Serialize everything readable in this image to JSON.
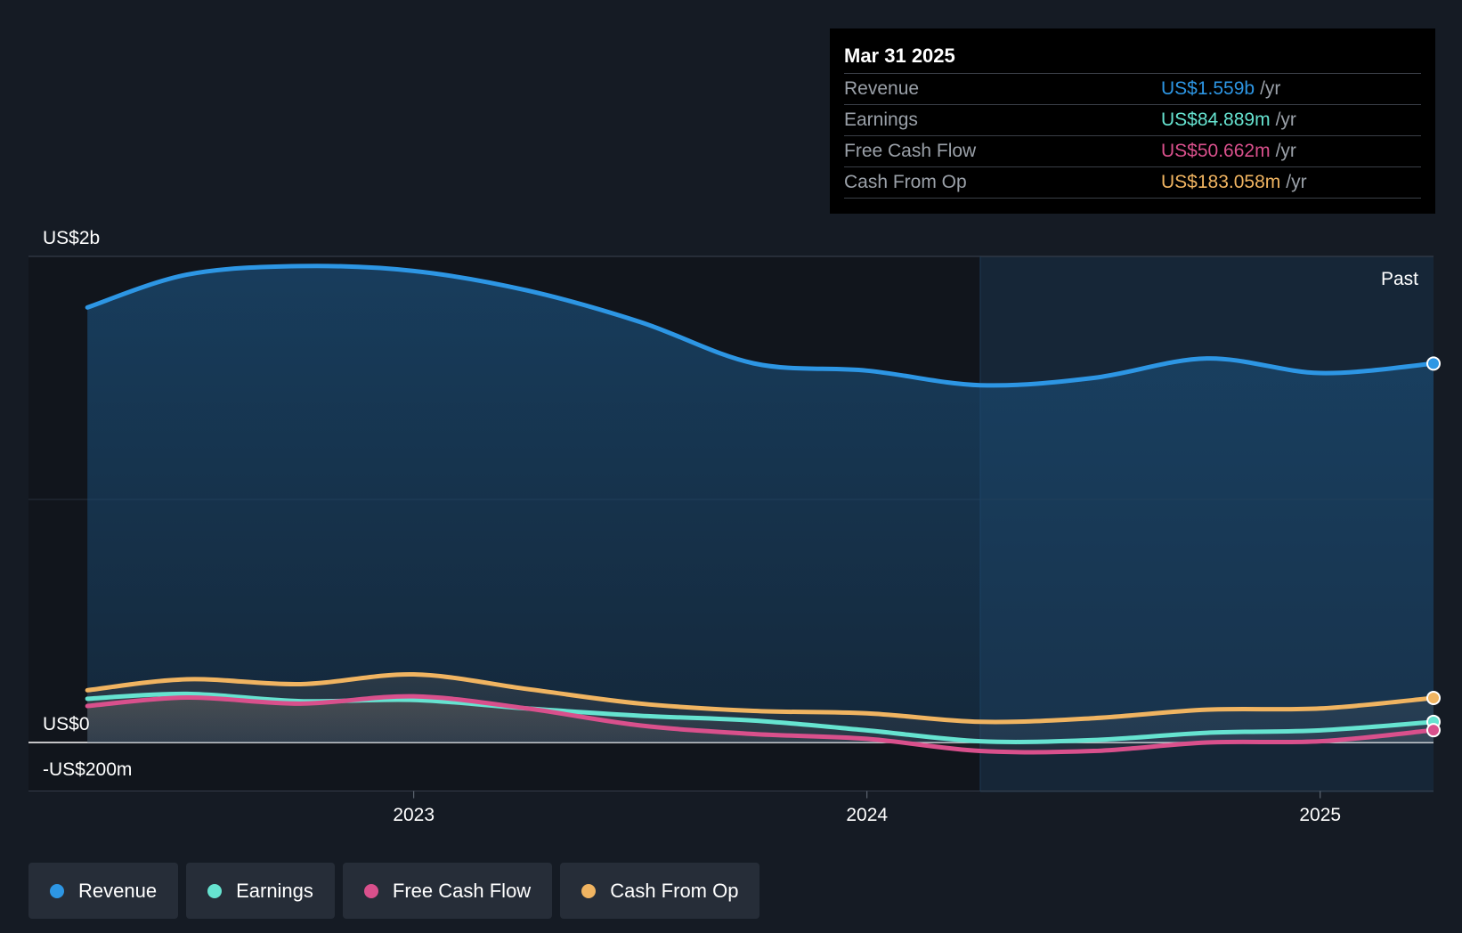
{
  "tooltip": {
    "date": "Mar 31 2025",
    "rows": [
      {
        "label": "Revenue",
        "value": "US$1.559b",
        "unit": "/yr",
        "color": "#2d96e4"
      },
      {
        "label": "Earnings",
        "value": "US$84.889m",
        "unit": "/yr",
        "color": "#66e3d0"
      },
      {
        "label": "Free Cash Flow",
        "value": "US$50.662m",
        "unit": "/yr",
        "color": "#d9508c"
      },
      {
        "label": "Cash From Op",
        "value": "US$183.058m",
        "unit": "/yr",
        "color": "#f0b461"
      }
    ]
  },
  "legend": [
    {
      "label": "Revenue",
      "color": "#2d96e4"
    },
    {
      "label": "Earnings",
      "color": "#66e3d0"
    },
    {
      "label": "Free Cash Flow",
      "color": "#d9508c"
    },
    {
      "label": "Cash From Op",
      "color": "#f0b461"
    }
  ],
  "chart_data": {
    "type": "area",
    "past_label": "Past",
    "y_tick_labels": [
      {
        "value": 2000,
        "label": "US$2b"
      },
      {
        "value": 0,
        "label": "US$0"
      },
      {
        "value": -200,
        "label": "-US$200m"
      }
    ],
    "x_tick_labels": [
      {
        "value": 2023.0,
        "label": "2023"
      },
      {
        "value": 2024.0,
        "label": "2024"
      },
      {
        "value": 2025.0,
        "label": "2025"
      }
    ],
    "xlim": [
      2022.15,
      2025.25
    ],
    "ylim": [
      -200,
      2000
    ],
    "past_start": 2024.25,
    "series": [
      {
        "name": "Revenue",
        "color": "#2d96e4",
        "x": [
          2022.28,
          2022.5,
          2022.75,
          2023.0,
          2023.25,
          2023.5,
          2023.75,
          2024.0,
          2024.25,
          2024.5,
          2024.75,
          2025.0,
          2025.25
        ],
        "values": [
          1790,
          1925,
          1960,
          1940,
          1860,
          1730,
          1560,
          1530,
          1470,
          1500,
          1580,
          1520,
          1559
        ]
      },
      {
        "name": "Earnings",
        "color": "#66e3d0",
        "x": [
          2022.28,
          2022.5,
          2022.75,
          2023.0,
          2023.25,
          2023.5,
          2023.75,
          2024.0,
          2024.25,
          2024.5,
          2024.75,
          2025.0,
          2025.25
        ],
        "values": [
          180,
          200,
          170,
          175,
          140,
          110,
          90,
          50,
          5,
          10,
          40,
          50,
          84.889
        ]
      },
      {
        "name": "Free Cash Flow",
        "color": "#d9508c",
        "x": [
          2022.28,
          2022.5,
          2022.75,
          2023.0,
          2023.25,
          2023.5,
          2023.75,
          2024.0,
          2024.25,
          2024.5,
          2024.75,
          2025.0,
          2025.25
        ],
        "values": [
          150,
          185,
          160,
          190,
          140,
          70,
          35,
          15,
          -35,
          -35,
          0,
          5,
          50.662
        ]
      },
      {
        "name": "Cash From Op",
        "color": "#f0b461",
        "x": [
          2022.28,
          2022.5,
          2022.75,
          2023.0,
          2023.25,
          2023.5,
          2023.75,
          2024.0,
          2024.25,
          2024.5,
          2024.75,
          2025.0,
          2025.25
        ],
        "values": [
          215,
          260,
          240,
          280,
          220,
          160,
          130,
          120,
          85,
          100,
          135,
          140,
          183.058
        ]
      }
    ]
  }
}
